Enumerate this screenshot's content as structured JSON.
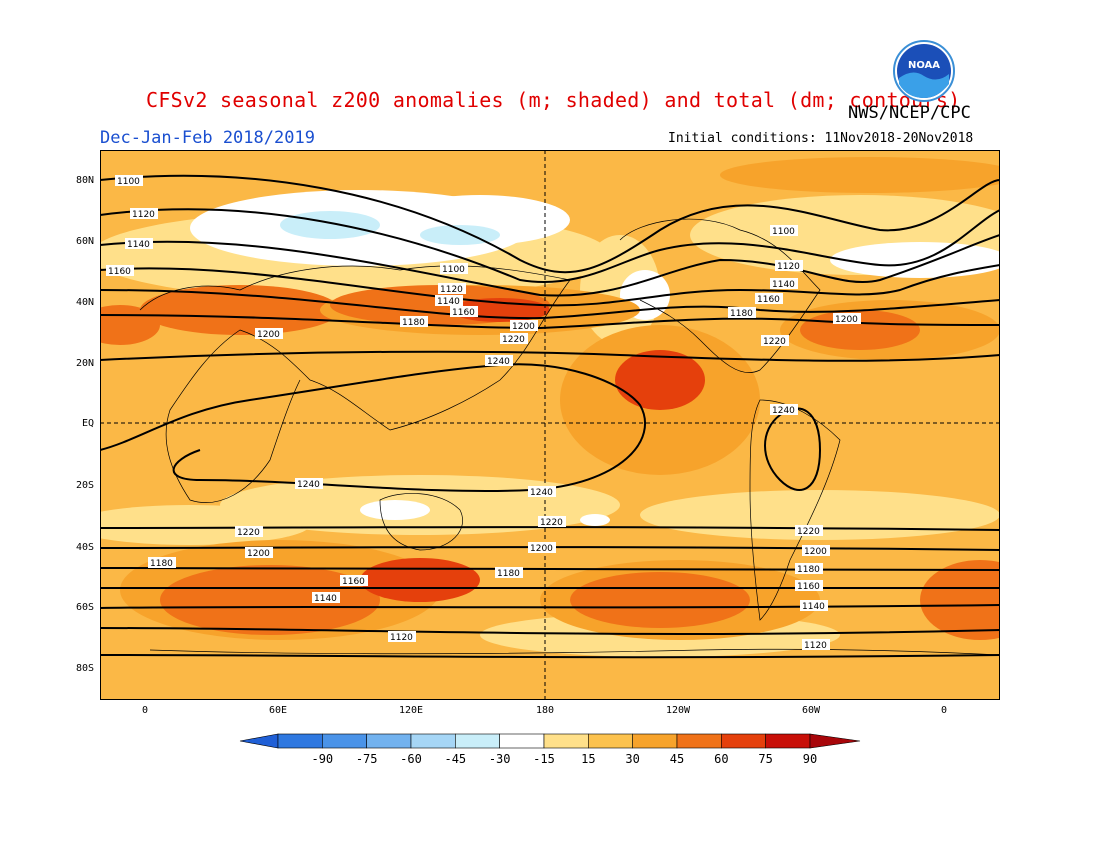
{
  "header": {
    "title": "CFSv2 seasonal z200 anomalies (m; shaded) and total (dm; contours)",
    "agency": "NWS/NCEP/CPC",
    "season": "Dec-Jan-Feb 2018/2019",
    "initial_conditions": "Initial conditions: 11Nov2018-20Nov2018",
    "logo_text": "NOAA"
  },
  "axes": {
    "lat_labels": [
      "80N",
      "60N",
      "40N",
      "20N",
      "EQ",
      "20S",
      "40S",
      "60S",
      "80S"
    ],
    "lon_labels": [
      "0",
      "60E",
      "120E",
      "180",
      "120W",
      "60W",
      "0"
    ]
  },
  "colorbar": {
    "labels": [
      "-90",
      "-75",
      "-60",
      "-45",
      "-30",
      "-15",
      "15",
      "30",
      "45",
      "60",
      "75",
      "90"
    ],
    "colors": [
      "#1f5fd6",
      "#2f78e0",
      "#4a93e8",
      "#72b2ef",
      "#a6d6f6",
      "#c9eef9",
      "#ffffff",
      "#ffe08a",
      "#fcc24e",
      "#f7a32b",
      "#f07218",
      "#e5400c",
      "#c80f08",
      "#a8060a"
    ]
  },
  "map": {
    "contour_labels": [
      "1100",
      "1120",
      "1140",
      "1160",
      "1180",
      "1200",
      "1220",
      "1240"
    ],
    "fill_color": "#fbb846",
    "shading_note": "z200 anomaly shading; contour lines are total height in dm"
  }
}
